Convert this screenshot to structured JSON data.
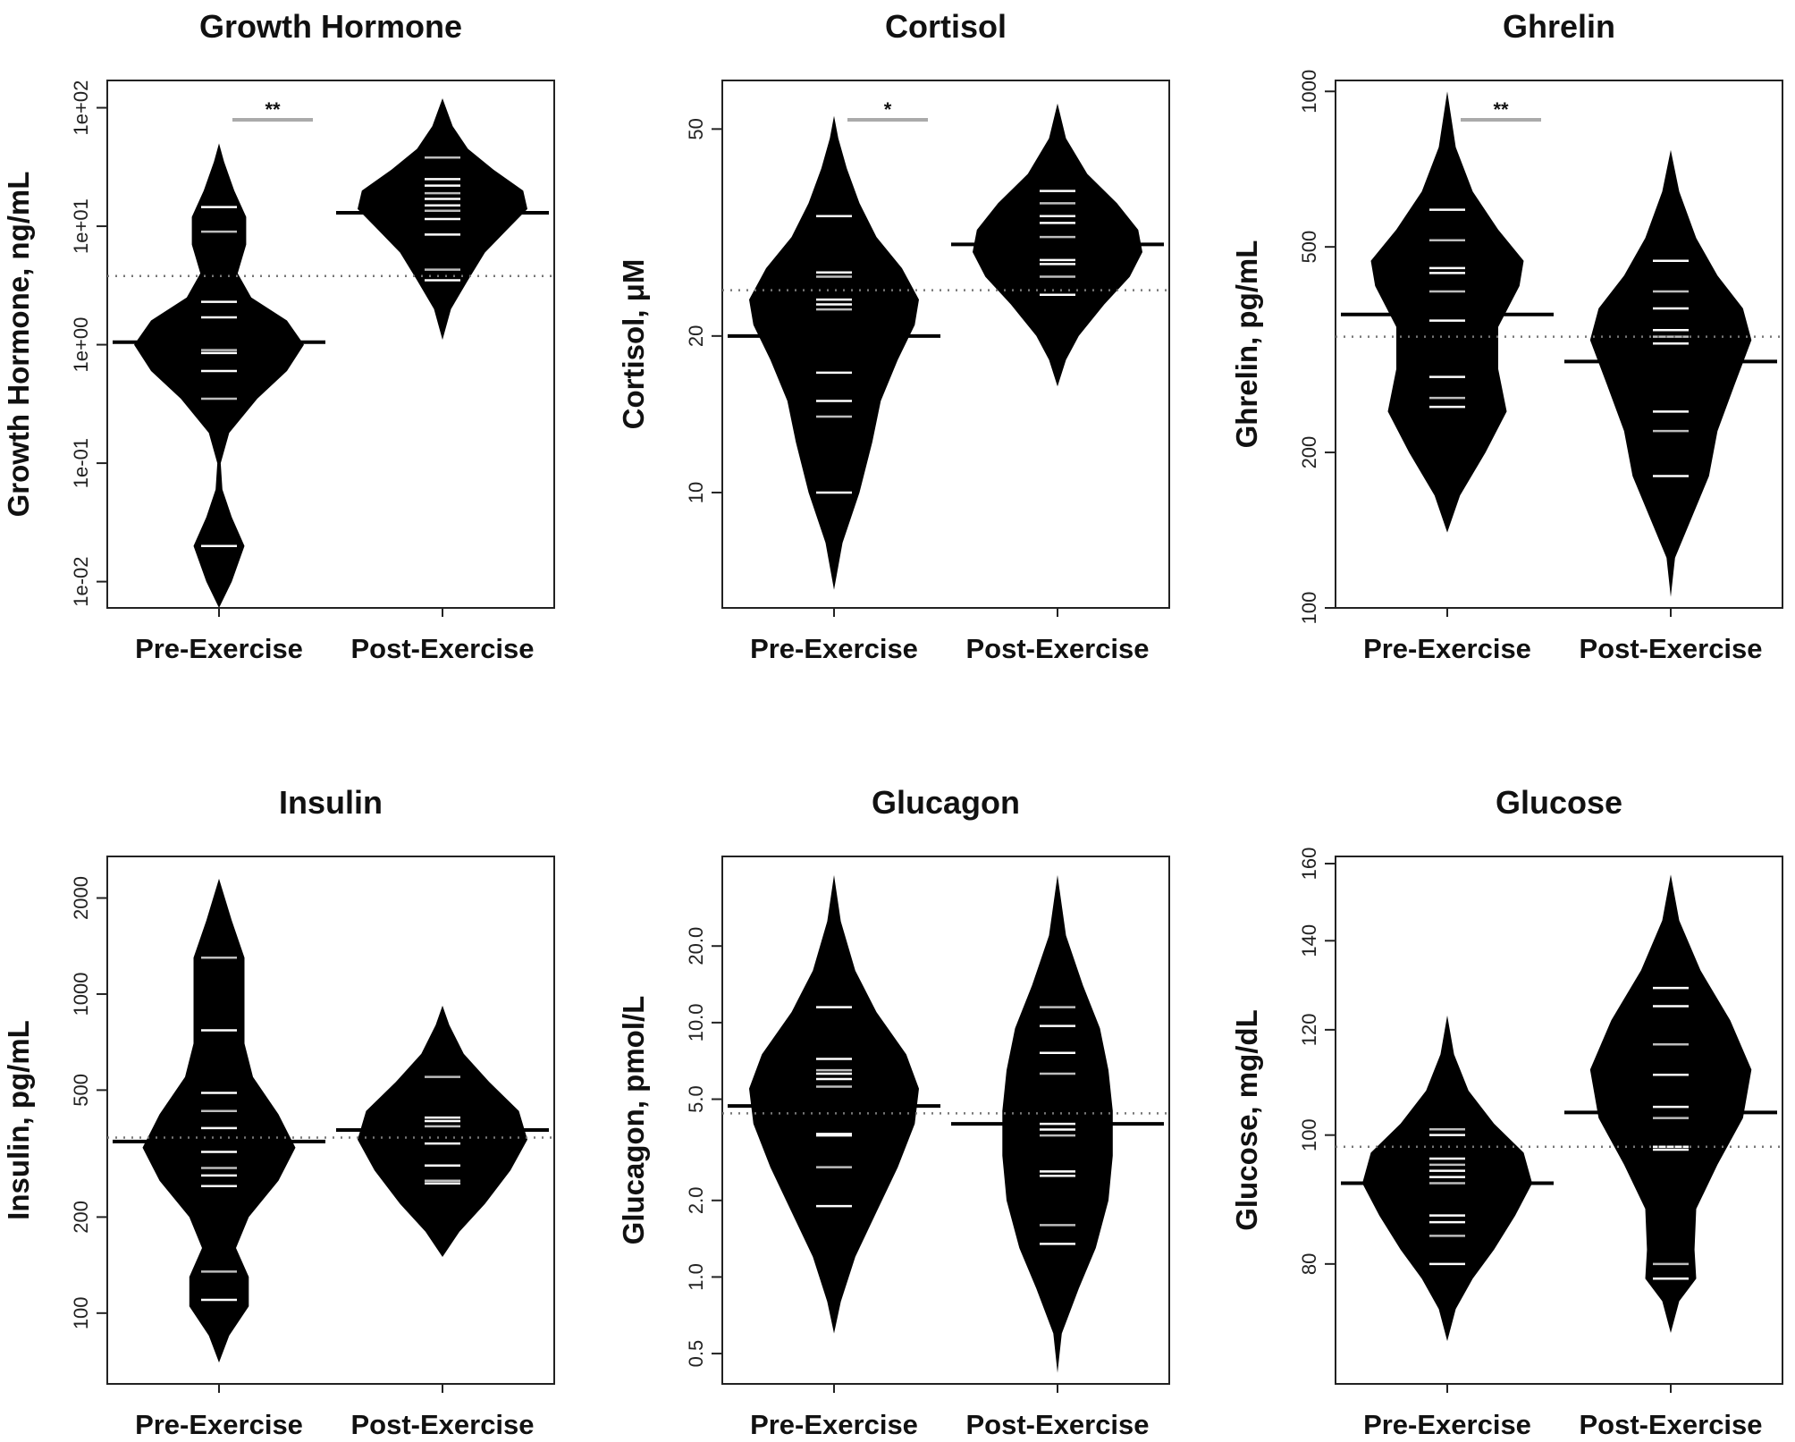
{
  "chart_data": [
    {
      "type": "beanplot",
      "title": "Growth Hormone",
      "ylabel": "Growth Hormone, ng/mL",
      "yscale": "log",
      "ylim": [
        0.006,
        170
      ],
      "yticks": [
        0.01,
        0.1,
        1,
        10,
        100
      ],
      "ytick_labels": [
        "1e-02",
        "1e-01",
        "1e+00",
        "1e+01",
        "1e+02"
      ],
      "categories": [
        "Pre-Exercise",
        "Post-Exercise"
      ],
      "overall_mean": 3.8,
      "significance": "**",
      "series": [
        {
          "name": "Pre-Exercise",
          "mean": 1.05,
          "points": [
            0.02,
            0.35,
            0.6,
            0.85,
            0.9,
            1.7,
            2.3,
            9,
            14.5
          ],
          "density": [
            [
              0.006,
              0.0
            ],
            [
              0.01,
              0.15
            ],
            [
              0.02,
              0.3
            ],
            [
              0.035,
              0.15
            ],
            [
              0.06,
              0.04
            ],
            [
              0.1,
              0.02
            ],
            [
              0.18,
              0.12
            ],
            [
              0.35,
              0.45
            ],
            [
              0.6,
              0.8
            ],
            [
              1.0,
              1.0
            ],
            [
              1.6,
              0.8
            ],
            [
              2.5,
              0.38
            ],
            [
              4,
              0.22
            ],
            [
              7,
              0.32
            ],
            [
              12,
              0.32
            ],
            [
              20,
              0.18
            ],
            [
              35,
              0.06
            ],
            [
              50,
              0.0
            ]
          ]
        },
        {
          "name": "Post-Exercise",
          "mean": 13,
          "points": [
            3.5,
            4.3,
            8.5,
            11.5,
            13.5,
            15,
            17,
            19,
            22,
            25,
            38
          ],
          "density": [
            [
              1.1,
              0.0
            ],
            [
              2.0,
              0.1
            ],
            [
              3.5,
              0.3
            ],
            [
              6,
              0.5
            ],
            [
              10,
              0.8
            ],
            [
              14,
              1.0
            ],
            [
              20,
              0.95
            ],
            [
              30,
              0.6
            ],
            [
              45,
              0.3
            ],
            [
              70,
              0.12
            ],
            [
              120,
              0.0
            ]
          ]
        }
      ]
    },
    {
      "type": "beanplot",
      "title": "Cortisol",
      "ylabel": "Cortisol, μM",
      "yscale": "log",
      "ylim": [
        6.0,
        62
      ],
      "yticks": [
        10,
        20,
        50
      ],
      "ytick_labels": [
        "10",
        "20",
        "50"
      ],
      "categories": [
        "Pre-Exercise",
        "Post-Exercise"
      ],
      "overall_mean": 24.5,
      "significance": "*",
      "series": [
        {
          "name": "Pre-Exercise",
          "mean": 20,
          "points": [
            10,
            14,
            15,
            17,
            22.5,
            23,
            23.5,
            26,
            26.5,
            34
          ],
          "density": [
            [
              6.5,
              0.0
            ],
            [
              8,
              0.1
            ],
            [
              10,
              0.3
            ],
            [
              12.5,
              0.45
            ],
            [
              15,
              0.55
            ],
            [
              18,
              0.75
            ],
            [
              21,
              0.95
            ],
            [
              23.5,
              1.0
            ],
            [
              27,
              0.8
            ],
            [
              31,
              0.5
            ],
            [
              36,
              0.3
            ],
            [
              42,
              0.15
            ],
            [
              48,
              0.05
            ],
            [
              53,
              0.0
            ]
          ]
        },
        {
          "name": "Post-Exercise",
          "mean": 30,
          "points": [
            24,
            26,
            27.5,
            28,
            31,
            33,
            34,
            36,
            38
          ],
          "density": [
            [
              16,
              0.0
            ],
            [
              18,
              0.1
            ],
            [
              20,
              0.25
            ],
            [
              23,
              0.55
            ],
            [
              26,
              0.85
            ],
            [
              29,
              1.0
            ],
            [
              32,
              0.95
            ],
            [
              36,
              0.7
            ],
            [
              41,
              0.35
            ],
            [
              48,
              0.1
            ],
            [
              56,
              0.0
            ]
          ]
        }
      ]
    },
    {
      "type": "beanplot",
      "title": "Ghrelin",
      "ylabel": "Ghrelin, pg/mL",
      "yscale": "log",
      "ylim": [
        100,
        1050
      ],
      "yticks": [
        100,
        200,
        500,
        1000
      ],
      "ytick_labels": [
        "100",
        "200",
        "500",
        "1000"
      ],
      "categories": [
        "Pre-Exercise",
        "Post-Exercise"
      ],
      "overall_mean": 335,
      "significance": "**",
      "series": [
        {
          "name": "Pre-Exercise",
          "mean": 370,
          "points": [
            245,
            255,
            280,
            360,
            410,
            445,
            455,
            515,
            590
          ],
          "density": [
            [
              140,
              0.0
            ],
            [
              165,
              0.15
            ],
            [
              200,
              0.45
            ],
            [
              240,
              0.7
            ],
            [
              290,
              0.6
            ],
            [
              350,
              0.6
            ],
            [
              420,
              0.85
            ],
            [
              470,
              0.9
            ],
            [
              540,
              0.6
            ],
            [
              640,
              0.3
            ],
            [
              780,
              0.1
            ],
            [
              1000,
              0.0
            ]
          ]
        },
        {
          "name": "Post-Exercise",
          "mean": 300,
          "points": [
            180,
            220,
            240,
            325,
            335,
            345,
            380,
            410,
            470
          ],
          "density": [
            [
              105,
              0.0
            ],
            [
              125,
              0.05
            ],
            [
              150,
              0.25
            ],
            [
              180,
              0.45
            ],
            [
              220,
              0.55
            ],
            [
              270,
              0.75
            ],
            [
              330,
              0.95
            ],
            [
              380,
              0.85
            ],
            [
              440,
              0.55
            ],
            [
              520,
              0.3
            ],
            [
              640,
              0.1
            ],
            [
              770,
              0.0
            ]
          ]
        }
      ]
    },
    {
      "type": "beanplot",
      "title": "Insulin",
      "ylabel": "Insulin, pg/mL",
      "yscale": "log",
      "ylim": [
        60,
        2700
      ],
      "yticks": [
        100,
        200,
        500,
        1000,
        2000
      ],
      "ytick_labels": [
        "100",
        "200",
        "500",
        "1000",
        "2000"
      ],
      "categories": [
        "Pre-Exercise",
        "Post-Exercise"
      ],
      "overall_mean": 355,
      "significance": "",
      "series": [
        {
          "name": "Pre-Exercise",
          "mean": 345,
          "points": [
            110,
            135,
            250,
            270,
            285,
            320,
            380,
            430,
            490,
            770,
            1300
          ],
          "density": [
            [
              70,
              0.0
            ],
            [
              85,
              0.12
            ],
            [
              105,
              0.35
            ],
            [
              130,
              0.35
            ],
            [
              160,
              0.2
            ],
            [
              200,
              0.35
            ],
            [
              260,
              0.7
            ],
            [
              330,
              0.9
            ],
            [
              420,
              0.7
            ],
            [
              550,
              0.4
            ],
            [
              700,
              0.3
            ],
            [
              950,
              0.3
            ],
            [
              1300,
              0.3
            ],
            [
              1700,
              0.15
            ],
            [
              2300,
              0.0
            ]
          ]
        },
        {
          "name": "Post-Exercise",
          "mean": 375,
          "points": [
            255,
            260,
            290,
            340,
            385,
            400,
            410,
            550
          ],
          "density": [
            [
              150,
              0.0
            ],
            [
              180,
              0.2
            ],
            [
              220,
              0.5
            ],
            [
              280,
              0.8
            ],
            [
              350,
              1.0
            ],
            [
              430,
              0.9
            ],
            [
              530,
              0.55
            ],
            [
              650,
              0.25
            ],
            [
              800,
              0.08
            ],
            [
              920,
              0.0
            ]
          ]
        }
      ]
    },
    {
      "type": "beanplot",
      "title": "Glucagon",
      "ylabel": "Glucagon, pmol/L",
      "yscale": "log",
      "ylim": [
        0.38,
        45
      ],
      "yticks": [
        0.5,
        1.0,
        2.0,
        5.0,
        10.0,
        20.0
      ],
      "ytick_labels": [
        "0.5",
        "1.0",
        "2.0",
        "5.0",
        "10.0",
        "20.0"
      ],
      "categories": [
        "Pre-Exercise",
        "Post-Exercise"
      ],
      "overall_mean": 4.4,
      "significance": "",
      "series": [
        {
          "name": "Pre-Exercise",
          "mean": 4.7,
          "points": [
            1.9,
            2.7,
            3.6,
            3.65,
            5.6,
            6.0,
            6.3,
            6.5,
            7.2,
            11.5
          ],
          "density": [
            [
              0.6,
              0.0
            ],
            [
              0.8,
              0.08
            ],
            [
              1.2,
              0.25
            ],
            [
              1.8,
              0.5
            ],
            [
              2.7,
              0.75
            ],
            [
              4.0,
              0.95
            ],
            [
              5.5,
              1.0
            ],
            [
              7.5,
              0.85
            ],
            [
              11,
              0.5
            ],
            [
              16,
              0.25
            ],
            [
              25,
              0.08
            ],
            [
              38,
              0.0
            ]
          ]
        },
        {
          "name": "Post-Exercise",
          "mean": 4.0,
          "points": [
            1.35,
            1.6,
            2.5,
            2.6,
            3.6,
            3.8,
            4.0,
            6.3,
            7.6,
            9.7,
            11.5
          ],
          "density": [
            [
              0.42,
              0.0
            ],
            [
              0.6,
              0.05
            ],
            [
              0.9,
              0.25
            ],
            [
              1.3,
              0.45
            ],
            [
              2.0,
              0.6
            ],
            [
              3.0,
              0.65
            ],
            [
              4.5,
              0.65
            ],
            [
              6.5,
              0.6
            ],
            [
              9.5,
              0.5
            ],
            [
              14,
              0.3
            ],
            [
              22,
              0.1
            ],
            [
              38,
              0.0
            ]
          ]
        }
      ]
    },
    {
      "type": "beanplot",
      "title": "Glucose",
      "ylabel": "Glucose, mg/dL",
      "yscale": "log",
      "ylim": [
        65,
        162
      ],
      "yticks": [
        80,
        100,
        120,
        140,
        160
      ],
      "ytick_labels": [
        "80",
        "100",
        "120",
        "140",
        "160"
      ],
      "categories": [
        "Pre-Exercise",
        "Post-Exercise"
      ],
      "overall_mean": 98,
      "significance": "",
      "series": [
        {
          "name": "Pre-Exercise",
          "mean": 92,
          "points": [
            80,
            84,
            86,
            87,
            92,
            93,
            94,
            95,
            96,
            100,
            101
          ],
          "density": [
            [
              70,
              0.0
            ],
            [
              74,
              0.1
            ],
            [
              78,
              0.3
            ],
            [
              82,
              0.55
            ],
            [
              87,
              0.8
            ],
            [
              92,
              1.0
            ],
            [
              97,
              0.9
            ],
            [
              102,
              0.55
            ],
            [
              108,
              0.25
            ],
            [
              115,
              0.08
            ],
            [
              123,
              0.0
            ]
          ]
        },
        {
          "name": "Post-Exercise",
          "mean": 104,
          "points": [
            78,
            80,
            97.5,
            98,
            103,
            105,
            111,
            117,
            125,
            129
          ],
          "density": [
            [
              71,
              0.0
            ],
            [
              75,
              0.1
            ],
            [
              78,
              0.3
            ],
            [
              82,
              0.28
            ],
            [
              88,
              0.3
            ],
            [
              95,
              0.55
            ],
            [
              103,
              0.85
            ],
            [
              112,
              0.95
            ],
            [
              122,
              0.7
            ],
            [
              133,
              0.35
            ],
            [
              145,
              0.1
            ],
            [
              157,
              0.0
            ]
          ]
        }
      ]
    }
  ]
}
